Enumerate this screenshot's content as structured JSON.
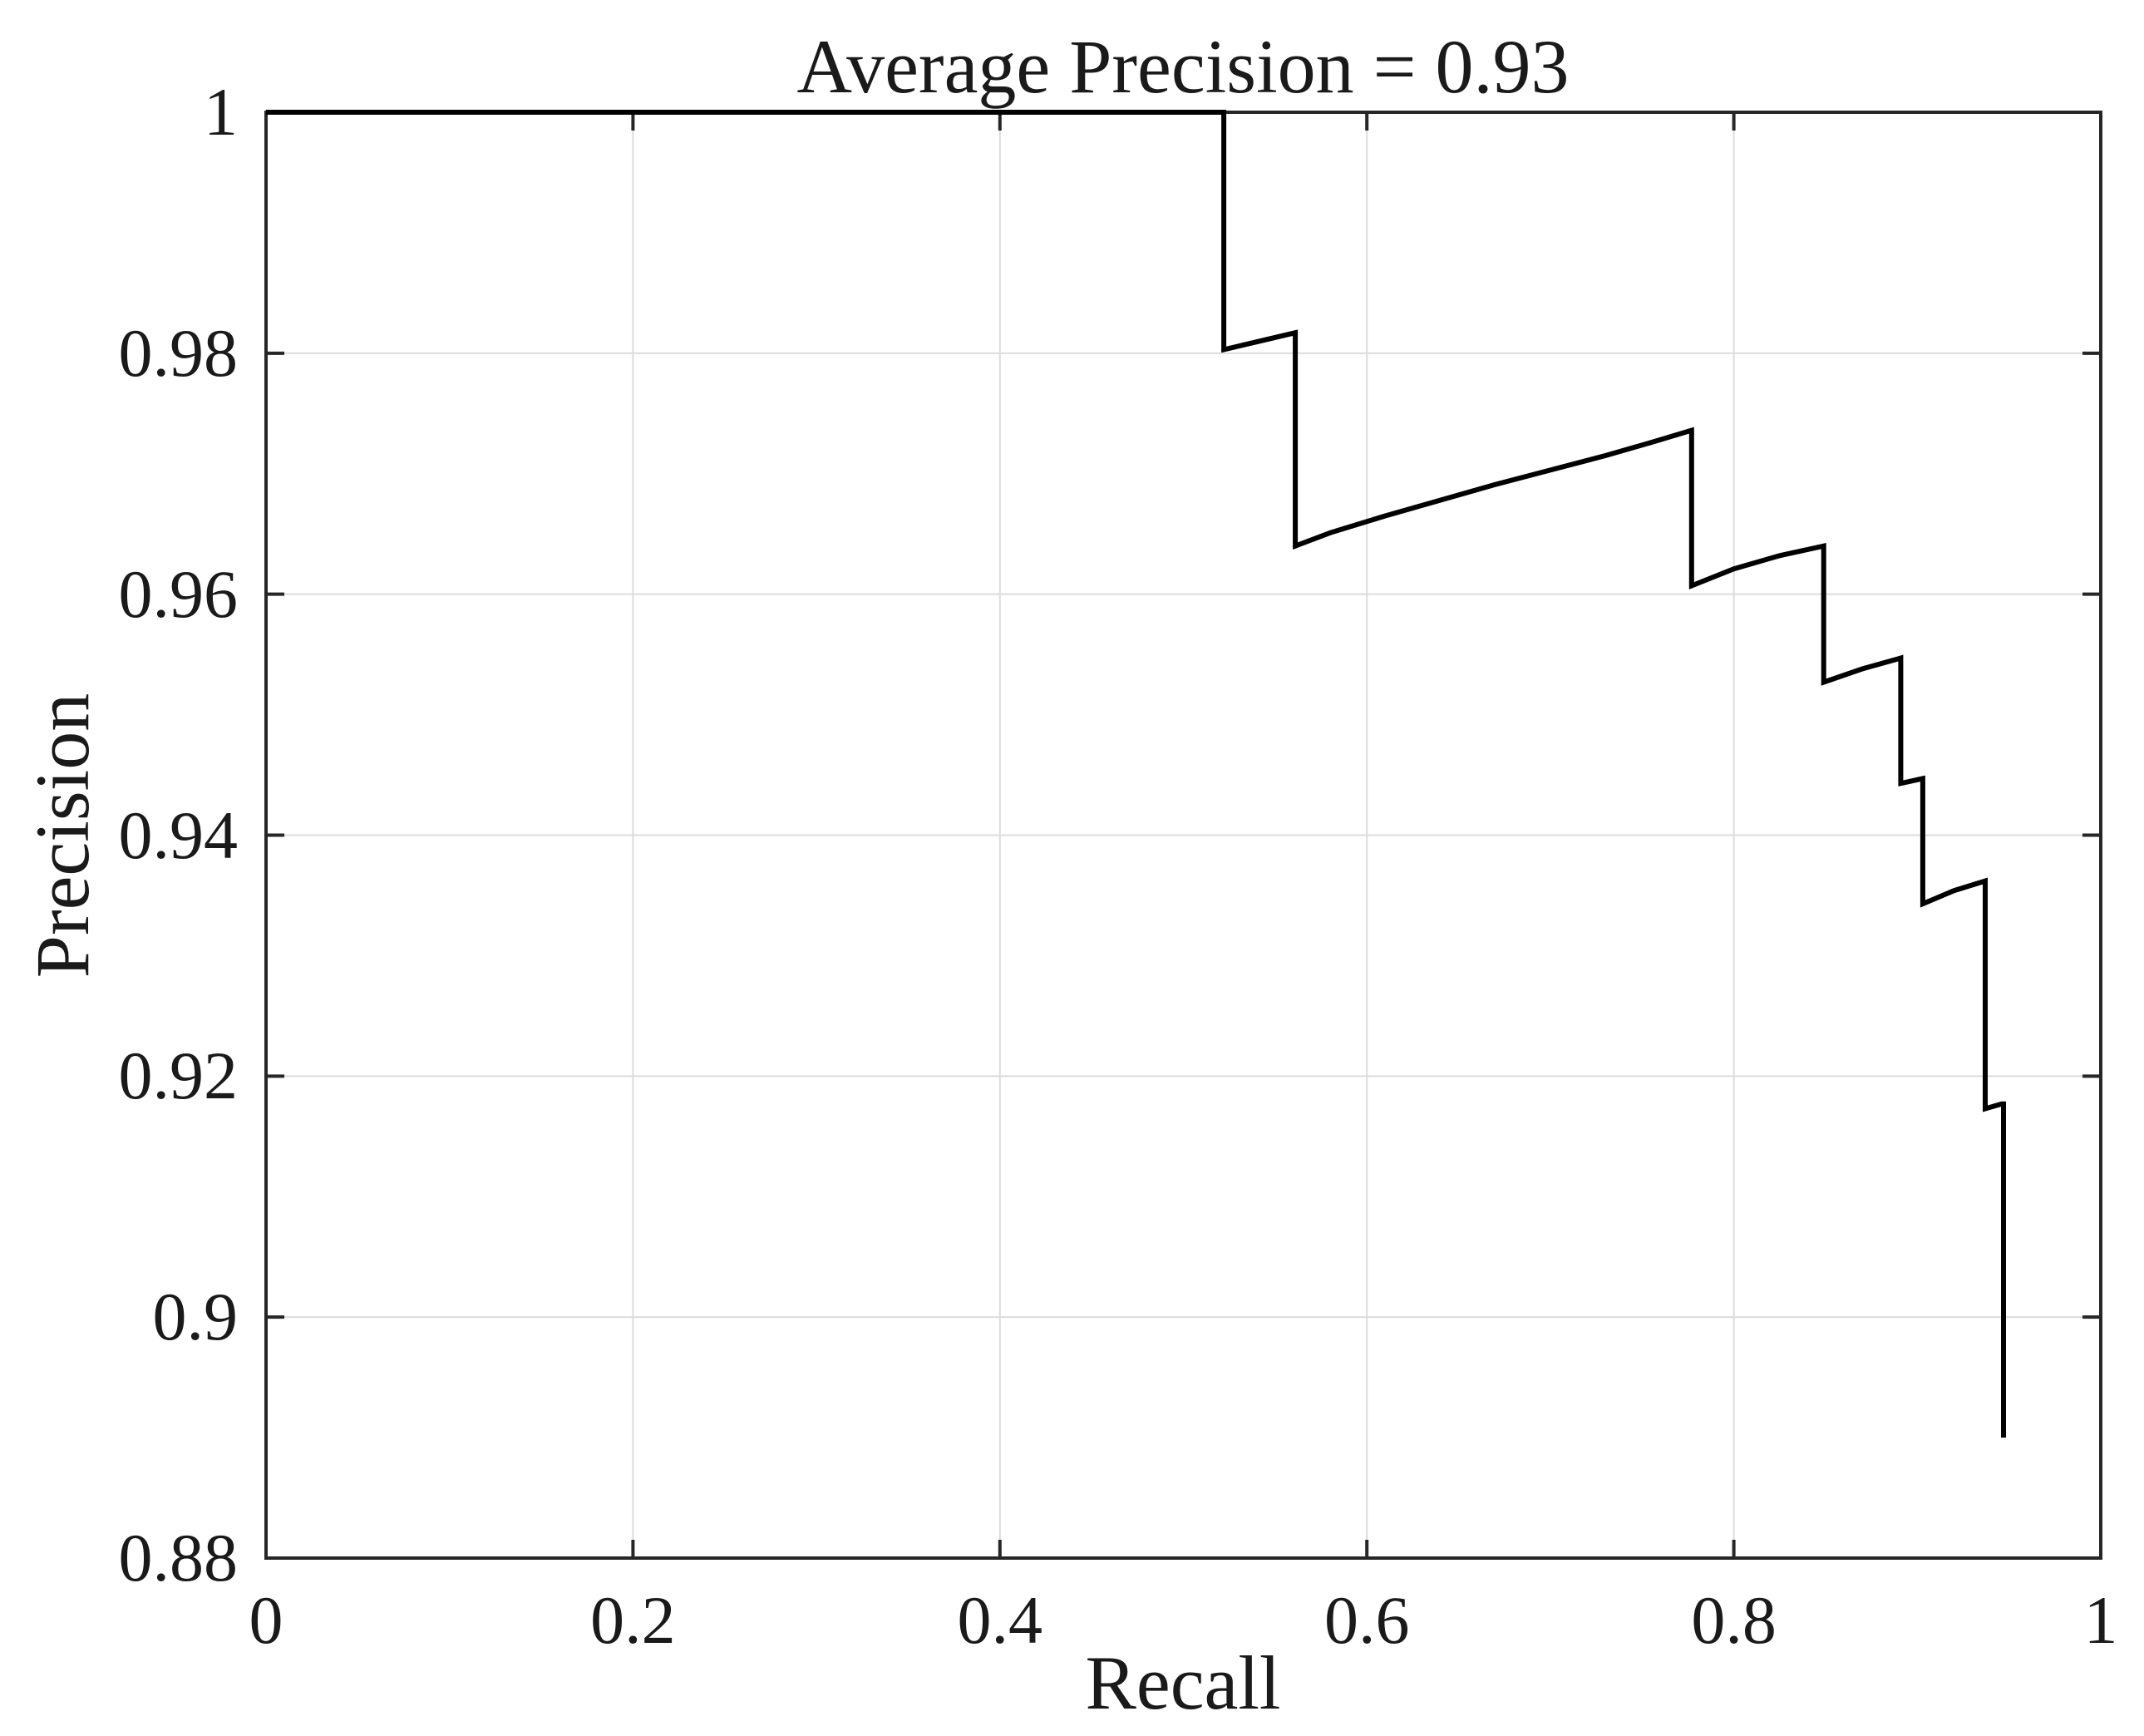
{
  "figure": {
    "background_color": "#ffffff",
    "text_color": "#1a1a1a",
    "axis_color": "#262626",
    "grid_color": "#dcdcdc"
  },
  "chart_data": {
    "type": "line",
    "title": "Average Precision = 0.93",
    "xlabel": "Recall",
    "ylabel": "Precision",
    "xlim": [
      0,
      1
    ],
    "ylim": [
      0.88,
      1
    ],
    "xticks": [
      0,
      0.2,
      0.4,
      0.6,
      0.8,
      1
    ],
    "xtick_labels": [
      "0",
      "0.2",
      "0.4",
      "0.6",
      "0.8",
      "1"
    ],
    "yticks": [
      0.88,
      0.9,
      0.92,
      0.94,
      0.96,
      0.98,
      1
    ],
    "ytick_labels": [
      "0.88",
      "0.9",
      "0.92",
      "0.94",
      "0.96",
      "0.98",
      "1"
    ],
    "grid": true,
    "legend_position": "none",
    "series": [
      {
        "name": "precision-recall curve",
        "color": "#000000",
        "line_width": 6,
        "points": [
          [
            0.0,
            1.0
          ],
          [
            0.522,
            1.0
          ],
          [
            0.522,
            0.9803
          ],
          [
            0.561,
            0.9817
          ],
          [
            0.561,
            0.964
          ],
          [
            0.58,
            0.9651
          ],
          [
            0.61,
            0.9665
          ],
          [
            0.64,
            0.9678
          ],
          [
            0.67,
            0.9691
          ],
          [
            0.7,
            0.9703
          ],
          [
            0.73,
            0.9715
          ],
          [
            0.755,
            0.9726
          ],
          [
            0.777,
            0.9736
          ],
          [
            0.777,
            0.9607
          ],
          [
            0.8,
            0.9621
          ],
          [
            0.825,
            0.9632
          ],
          [
            0.849,
            0.964
          ],
          [
            0.849,
            0.9527
          ],
          [
            0.87,
            0.9538
          ],
          [
            0.891,
            0.9547
          ],
          [
            0.891,
            0.9443
          ],
          [
            0.903,
            0.9447
          ],
          [
            0.903,
            0.9343
          ],
          [
            0.92,
            0.9354
          ],
          [
            0.937,
            0.9362
          ],
          [
            0.937,
            0.9173
          ],
          [
            0.946,
            0.9177
          ],
          [
            0.947,
            0.9177
          ],
          [
            0.947,
            0.89
          ]
        ]
      }
    ]
  }
}
